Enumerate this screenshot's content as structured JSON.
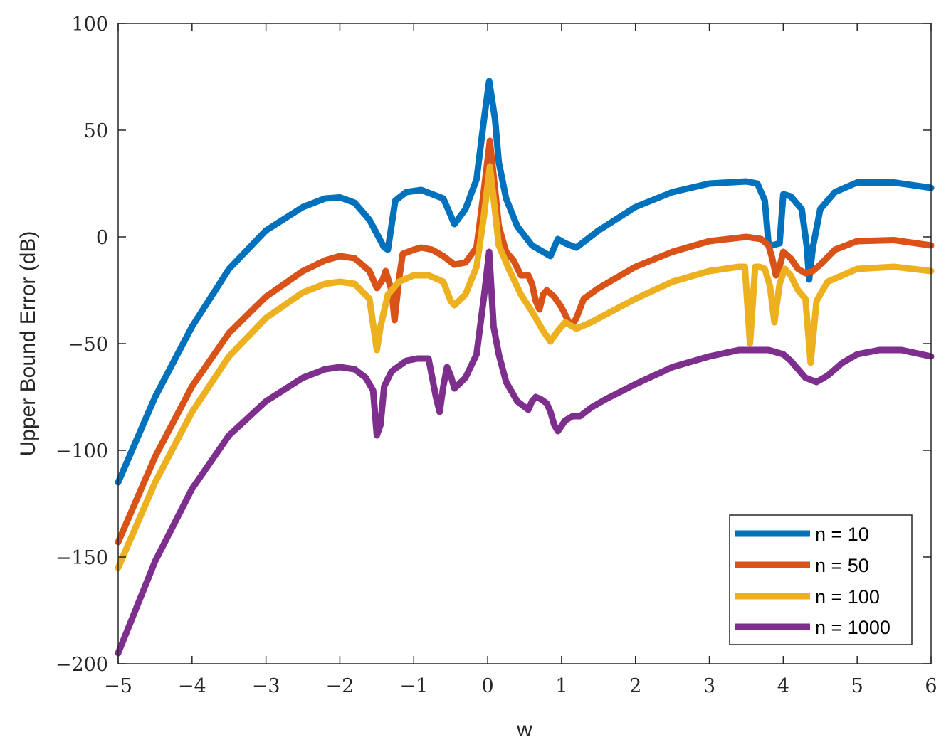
{
  "chart_data": {
    "type": "line",
    "xlabel": "w",
    "ylabel": "Upper Bound Error (dB)",
    "xlim": [
      -5,
      6
    ],
    "ylim": [
      -200,
      100
    ],
    "xticks": [
      -5,
      -4,
      -3,
      -2,
      -1,
      0,
      1,
      2,
      3,
      4,
      5,
      6
    ],
    "yticks": [
      100,
      50,
      0,
      -50,
      -100,
      -150,
      -200
    ],
    "xtick_labels": [
      "−5",
      "−4",
      "−3",
      "−2",
      "−1",
      "0",
      "1",
      "2",
      "3",
      "4",
      "5",
      "6"
    ],
    "ytick_labels": [
      "100",
      "50",
      "0",
      "−50",
      "−100",
      "−150",
      "−200"
    ],
    "grid": false,
    "box": true,
    "legend_position": "bottom-right",
    "series": [
      {
        "name": "n = 10",
        "color": "#0072BD",
        "x": [
          -5,
          -4.5,
          -4,
          -3.5,
          -3,
          -2.5,
          -2.2,
          -2,
          -1.8,
          -1.6,
          -1.4,
          -1.35,
          -1.25,
          -1.1,
          -0.9,
          -0.75,
          -0.6,
          -0.45,
          -0.3,
          -0.15,
          -0.05,
          0.02,
          0.1,
          0.15,
          0.25,
          0.4,
          0.6,
          0.8,
          0.85,
          0.95,
          1.05,
          1.2,
          1.5,
          2,
          2.5,
          3,
          3.5,
          3.65,
          3.75,
          3.8,
          3.85,
          3.95,
          4,
          4.1,
          4.25,
          4.32,
          4.35,
          4.4,
          4.5,
          4.7,
          5,
          5.5,
          6
        ],
        "y": [
          -115,
          -75,
          -42,
          -15,
          3,
          14,
          18,
          18.5,
          16,
          8,
          -5,
          -6,
          17,
          21,
          22,
          20,
          18,
          6,
          13,
          27,
          55,
          73,
          55,
          35,
          18,
          5,
          -4,
          -8,
          -9,
          -1,
          -3,
          -5,
          3,
          14,
          21,
          25,
          26,
          25,
          17,
          -3,
          -4,
          -3,
          20,
          19,
          13,
          -5,
          -20,
          -5,
          13,
          21,
          25.5,
          25.5,
          23
        ]
      },
      {
        "name": "n = 50",
        "color": "#D95319",
        "x": [
          -5,
          -4.5,
          -4,
          -3.5,
          -3,
          -2.5,
          -2.2,
          -2,
          -1.8,
          -1.6,
          -1.5,
          -1.42,
          -1.38,
          -1.3,
          -1.26,
          -1.2,
          -1.15,
          -1,
          -0.9,
          -0.75,
          -0.6,
          -0.45,
          -0.3,
          -0.15,
          -0.05,
          0.03,
          0.1,
          0.15,
          0.25,
          0.35,
          0.45,
          0.55,
          0.6,
          0.65,
          0.7,
          0.75,
          0.8,
          0.9,
          1,
          1.1,
          1.15,
          1.2,
          1.3,
          1.5,
          2,
          2.5,
          3,
          3.5,
          3.7,
          3.8,
          3.85,
          3.9,
          3.95,
          4,
          4.1,
          4.2,
          4.3,
          4.4,
          4.5,
          4.7,
          5,
          5.5,
          6
        ],
        "y": [
          -143,
          -103,
          -70,
          -45,
          -28,
          -16,
          -11,
          -9,
          -10,
          -16,
          -24,
          -20,
          -16,
          -25,
          -39,
          -20,
          -8,
          -6,
          -5,
          -6,
          -9,
          -13,
          -12,
          -5,
          22,
          45,
          22,
          5,
          -7,
          -11,
          -18,
          -18,
          -22,
          -30,
          -34,
          -27,
          -25,
          -28,
          -33,
          -40,
          -41,
          -38,
          -29,
          -24,
          -14,
          -7,
          -2,
          0,
          -1,
          -4,
          -10,
          -18,
          -14,
          -7,
          -10,
          -15,
          -17,
          -16,
          -13,
          -6,
          -2,
          -1.5,
          -4
        ]
      },
      {
        "name": "n = 100",
        "color": "#EDB120",
        "x": [
          -5,
          -4.5,
          -4,
          -3.5,
          -3,
          -2.5,
          -2.2,
          -2,
          -1.8,
          -1.6,
          -1.55,
          -1.5,
          -1.45,
          -1.35,
          -1.2,
          -1,
          -0.8,
          -0.6,
          -0.5,
          -0.45,
          -0.3,
          -0.15,
          -0.05,
          0.03,
          0.1,
          0.15,
          0.3,
          0.45,
          0.6,
          0.75,
          0.85,
          0.95,
          1.05,
          1.2,
          1.4,
          2,
          2.5,
          3,
          3.4,
          3.48,
          3.55,
          3.62,
          3.68,
          3.75,
          3.82,
          3.88,
          3.95,
          4.02,
          4.1,
          4.2,
          4.3,
          4.37,
          4.45,
          4.6,
          5,
          5.5,
          6
        ],
        "y": [
          -155,
          -115,
          -82,
          -56,
          -38,
          -26,
          -22,
          -21,
          -22,
          -29,
          -41,
          -53,
          -42,
          -27,
          -21,
          -18,
          -18,
          -21,
          -30,
          -32,
          -27,
          -14,
          10,
          33,
          12,
          -4,
          -16,
          -27,
          -35,
          -44,
          -49,
          -44,
          -40,
          -43,
          -40,
          -29,
          -21,
          -16,
          -14,
          -14,
          -50,
          -14,
          -14,
          -15,
          -23,
          -40,
          -22,
          -15,
          -18,
          -25,
          -29,
          -59,
          -30,
          -21,
          -15,
          -14,
          -16
        ]
      },
      {
        "name": "n = 1000",
        "color": "#7E2F8E",
        "x": [
          -5,
          -4.5,
          -4,
          -3.5,
          -3,
          -2.5,
          -2.2,
          -2,
          -1.8,
          -1.65,
          -1.55,
          -1.5,
          -1.45,
          -1.4,
          -1.3,
          -1.1,
          -0.95,
          -0.8,
          -0.7,
          -0.65,
          -0.6,
          -0.55,
          -0.5,
          -0.45,
          -0.3,
          -0.15,
          -0.05,
          0.02,
          0.08,
          0.15,
          0.25,
          0.4,
          0.55,
          0.6,
          0.65,
          0.72,
          0.8,
          0.85,
          0.9,
          0.95,
          1.05,
          1.15,
          1.25,
          1.4,
          1.6,
          2,
          2.5,
          3,
          3.4,
          3.8,
          4,
          4.1,
          4.2,
          4.3,
          4.45,
          4.6,
          4.8,
          5,
          5.3,
          5.6,
          6
        ],
        "y": [
          -195,
          -152,
          -118,
          -93,
          -77,
          -66,
          -62,
          -61,
          -62,
          -66,
          -72,
          -93,
          -88,
          -70,
          -63,
          -58,
          -57,
          -57,
          -75,
          -82,
          -70,
          -61,
          -65,
          -71,
          -66,
          -55,
          -28,
          -7,
          -42,
          -55,
          -68,
          -77,
          -81,
          -77,
          -75,
          -76,
          -78,
          -82,
          -88,
          -91,
          -86,
          -84,
          -84,
          -80,
          -76,
          -69,
          -61,
          -56,
          -53,
          -53,
          -55,
          -58,
          -62,
          -66,
          -68,
          -65,
          -59,
          -55,
          -53,
          -53,
          -56
        ]
      }
    ]
  }
}
